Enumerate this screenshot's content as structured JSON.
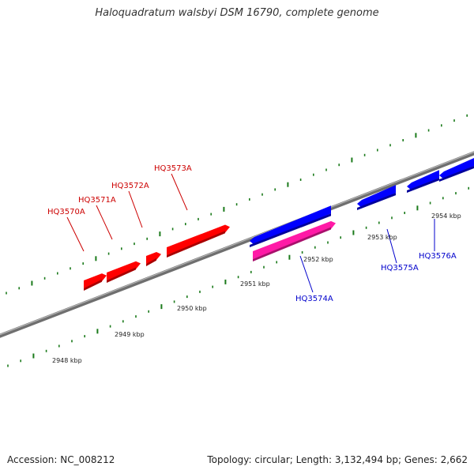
{
  "title": "Haloquadratum walsbyi DSM 16790, complete genome",
  "footer": {
    "accession": "Accession: NC_008212",
    "summary": "Topology: circular; Length: 3,132,494 bp; Genes: 2,662"
  },
  "colors": {
    "backbone": "#8a8a8a",
    "tick": "#1a7a1a",
    "forward_gene": "#ff0000",
    "forward_label": "#cc0000",
    "reverse_gene": "#0000ff",
    "reverse_label": "#0000cc",
    "rna_gene": "#ff1aa6"
  },
  "scale_labels": [
    "2948 kbp",
    "2949 kbp",
    "2950 kbp",
    "2951 kbp",
    "2952 kbp",
    "2953 kbp",
    "2954 kbp"
  ],
  "gene_labels": {
    "forward": [
      "HQ3570A",
      "HQ3571A",
      "HQ3572A",
      "HQ3573A"
    ],
    "reverse": [
      "HQ3574A",
      "HQ3575A",
      "HQ3576A"
    ]
  }
}
